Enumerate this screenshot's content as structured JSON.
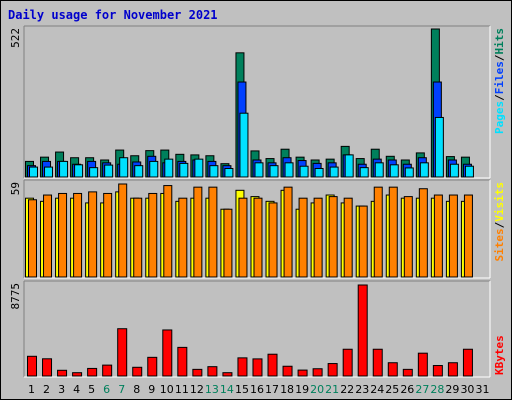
{
  "title": "Daily usage for November 2021",
  "colors": {
    "background": "#c0c0c0",
    "title": "#0000cc",
    "hits": "#00805c",
    "files": "#0040ff",
    "pages": "#00e0ff",
    "visits": "#ffff00",
    "sites": "#ff8000",
    "kbytes": "#ff0000",
    "weekend_label": "#00805c",
    "weekday_label": "#000000"
  },
  "chart_data": [
    {
      "type": "bar",
      "panel": "hits-files-pages",
      "max_label": "522",
      "ylim": [
        0,
        522
      ],
      "right_label": {
        "pages": "Pages",
        "files": "Files",
        "hits": "Hits",
        "sep": "/"
      },
      "categories": [
        "1",
        "2",
        "3",
        "4",
        "5",
        "6",
        "7",
        "8",
        "9",
        "10",
        "11",
        "12",
        "13",
        "14",
        "15",
        "16",
        "17",
        "18",
        "19",
        "20",
        "21",
        "22",
        "23",
        "24",
        "25",
        "26",
        "27",
        "28",
        "29",
        "30",
        "31"
      ],
      "series": [
        {
          "name": "Hits",
          "values": [
            55,
            70,
            88,
            68,
            68,
            60,
            95,
            75,
            93,
            95,
            80,
            78,
            75,
            47,
            438,
            92,
            65,
            98,
            70,
            60,
            63,
            108,
            65,
            98,
            73,
            60,
            85,
            522,
            72,
            70,
            0
          ]
        },
        {
          "name": "Files",
          "values": [
            40,
            55,
            55,
            45,
            55,
            50,
            45,
            53,
            73,
            50,
            55,
            60,
            55,
            40,
            335,
            60,
            50,
            68,
            58,
            48,
            50,
            78,
            45,
            63,
            60,
            45,
            68,
            335,
            60,
            45,
            0
          ]
        },
        {
          "name": "Pages",
          "values": [
            35,
            35,
            55,
            43,
            33,
            42,
            68,
            40,
            55,
            63,
            48,
            63,
            40,
            30,
            225,
            50,
            40,
            50,
            38,
            30,
            35,
            78,
            33,
            50,
            43,
            32,
            50,
            210,
            45,
            38,
            0
          ]
        }
      ]
    },
    {
      "type": "bar",
      "panel": "visits-sites",
      "max_label": "59",
      "ylim": [
        0,
        59
      ],
      "right_label": {
        "sites": "Sites",
        "visits": "Visits",
        "sep": "/"
      },
      "categories": [
        "1",
        "2",
        "3",
        "4",
        "5",
        "6",
        "7",
        "8",
        "9",
        "10",
        "11",
        "12",
        "13",
        "14",
        "15",
        "16",
        "17",
        "18",
        "19",
        "20",
        "21",
        "22",
        "23",
        "24",
        "25",
        "26",
        "27",
        "28",
        "29",
        "30",
        "31"
      ],
      "series": [
        {
          "name": "Visits",
          "values": [
            50,
            48,
            50,
            50,
            47,
            47,
            54,
            50,
            50,
            53,
            48,
            50,
            50,
            43,
            55,
            51,
            48,
            55,
            43,
            47,
            52,
            47,
            45,
            48,
            52,
            50,
            50,
            50,
            48,
            48,
            0
          ]
        },
        {
          "name": "Sites",
          "values": [
            49,
            52,
            53,
            53,
            54,
            53,
            59,
            50,
            53,
            58,
            50,
            57,
            57,
            43,
            50,
            50,
            47,
            57,
            50,
            50,
            51,
            50,
            45,
            57,
            57,
            51,
            56,
            52,
            52,
            52,
            0
          ]
        }
      ]
    },
    {
      "type": "bar",
      "panel": "kbytes",
      "max_label": "8775",
      "ylim": [
        0,
        8775
      ],
      "right_label": {
        "kbytes": "KBytes"
      },
      "categories": [
        "1",
        "2",
        "3",
        "4",
        "5",
        "6",
        "7",
        "8",
        "9",
        "10",
        "11",
        "12",
        "13",
        "14",
        "15",
        "16",
        "17",
        "18",
        "19",
        "20",
        "21",
        "22",
        "23",
        "24",
        "25",
        "26",
        "27",
        "28",
        "29",
        "30",
        "31"
      ],
      "series": [
        {
          "name": "KBytes",
          "values": [
            1900,
            1660,
            550,
            320,
            730,
            1050,
            4560,
            840,
            1800,
            4440,
            2760,
            640,
            900,
            320,
            1750,
            1650,
            2100,
            940,
            570,
            700,
            1200,
            2580,
            8775,
            2580,
            1280,
            640,
            2200,
            1010,
            1280,
            2580,
            0
          ]
        }
      ]
    }
  ],
  "x_labels": [
    {
      "text": "1",
      "weekend": false
    },
    {
      "text": "2",
      "weekend": false
    },
    {
      "text": "3",
      "weekend": false
    },
    {
      "text": "4",
      "weekend": false
    },
    {
      "text": "5",
      "weekend": false
    },
    {
      "text": "6",
      "weekend": true
    },
    {
      "text": "7",
      "weekend": true
    },
    {
      "text": "8",
      "weekend": false
    },
    {
      "text": "9",
      "weekend": false
    },
    {
      "text": "10",
      "weekend": false
    },
    {
      "text": "11",
      "weekend": false
    },
    {
      "text": "12",
      "weekend": false
    },
    {
      "text": "13",
      "weekend": true
    },
    {
      "text": "14",
      "weekend": true
    },
    {
      "text": "15",
      "weekend": false
    },
    {
      "text": "16",
      "weekend": false
    },
    {
      "text": "17",
      "weekend": false
    },
    {
      "text": "18",
      "weekend": false
    },
    {
      "text": "19",
      "weekend": false
    },
    {
      "text": "20",
      "weekend": true
    },
    {
      "text": "21",
      "weekend": true
    },
    {
      "text": "22",
      "weekend": false
    },
    {
      "text": "23",
      "weekend": false
    },
    {
      "text": "24",
      "weekend": false
    },
    {
      "text": "25",
      "weekend": false
    },
    {
      "text": "26",
      "weekend": false
    },
    {
      "text": "27",
      "weekend": true
    },
    {
      "text": "28",
      "weekend": true
    },
    {
      "text": "29",
      "weekend": false
    },
    {
      "text": "30",
      "weekend": false
    },
    {
      "text": "31",
      "weekend": false
    }
  ]
}
